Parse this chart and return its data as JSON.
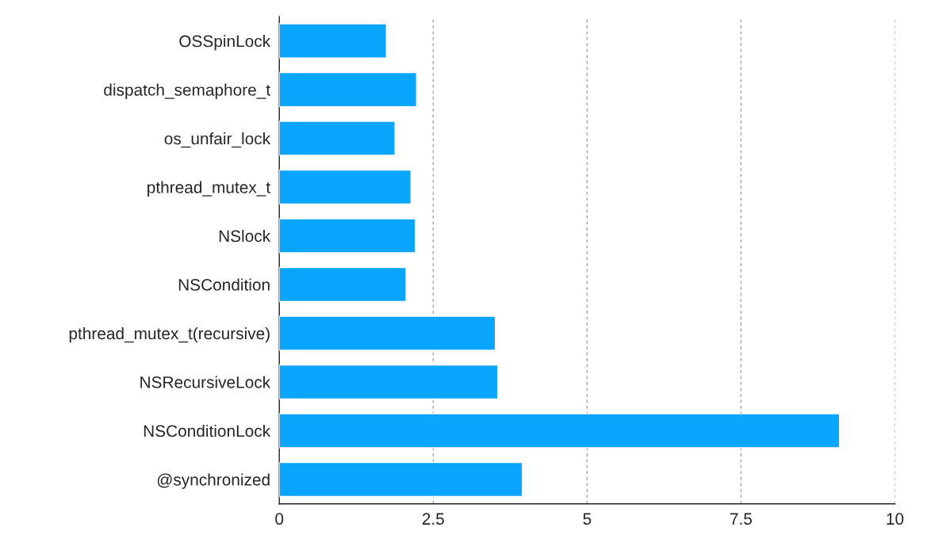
{
  "chart_data": {
    "type": "bar",
    "orientation": "horizontal",
    "categories": [
      "OSSpinLock",
      "dispatch_semaphore_t",
      "os_unfair_lock",
      "pthread_mutex_t",
      "NSlock",
      "NSCondition",
      "pthread_mutex_t(recursive)",
      "NSRecursiveLock",
      "NSConditionLock",
      "@synchronized"
    ],
    "values": [
      1.74,
      2.23,
      1.88,
      2.14,
      2.21,
      2.06,
      3.51,
      3.55,
      9.1,
      3.95
    ],
    "color": "#0aa5fc",
    "xlim": [
      0,
      10
    ],
    "xticks": [
      0,
      2.5,
      5,
      7.5,
      10
    ],
    "grid": "x"
  }
}
